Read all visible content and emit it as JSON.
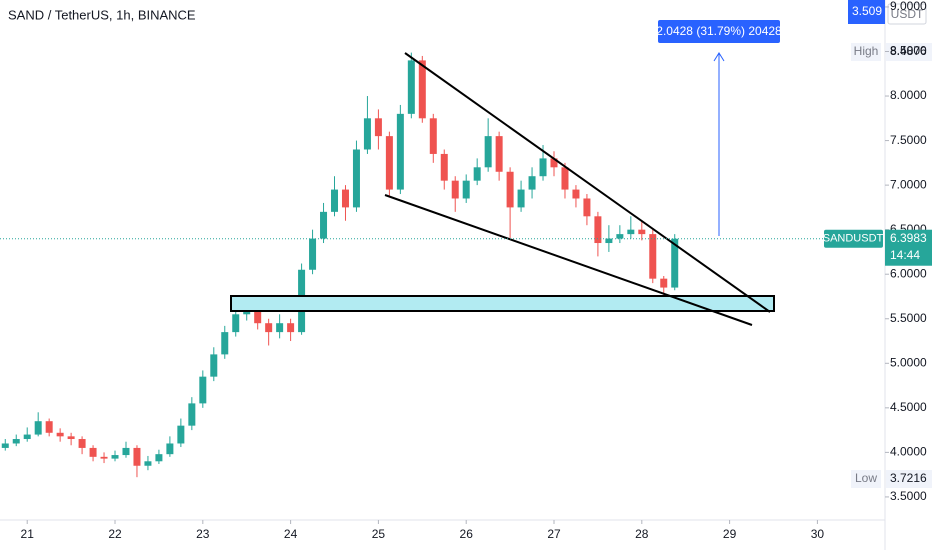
{
  "chart_data": {
    "type": "candlestick",
    "title": "SAND / TetherUS, 1h, BINANCE",
    "up_color": "#26a69a",
    "down_color": "#ef5350",
    "x": [
      20.75,
      20.875,
      21.0,
      21.125,
      21.25,
      21.375,
      21.5,
      21.625,
      21.75,
      21.875,
      22.0,
      22.125,
      22.25,
      22.375,
      22.5,
      22.625,
      22.75,
      22.875,
      23.0,
      23.125,
      23.25,
      23.375,
      23.5,
      23.625,
      23.75,
      23.875,
      24.0,
      24.125,
      24.25,
      24.375,
      24.5,
      24.625,
      24.75,
      24.875,
      25.0,
      25.125,
      25.25,
      25.375,
      25.5,
      25.625,
      25.75,
      25.875,
      26.0,
      26.125,
      26.25,
      26.375,
      26.5,
      26.625,
      26.75,
      26.875,
      27.0,
      27.125,
      27.25,
      27.375,
      27.5,
      27.625,
      27.75,
      27.875,
      28.0,
      28.125,
      28.25,
      28.375
    ],
    "open": [
      4.05,
      4.1,
      4.15,
      4.2,
      4.35,
      4.22,
      4.18,
      4.15,
      4.05,
      3.95,
      3.93,
      3.97,
      4.05,
      3.85,
      3.9,
      3.98,
      4.1,
      4.3,
      4.55,
      4.85,
      5.1,
      5.35,
      5.55,
      5.6,
      5.45,
      5.35,
      5.45,
      5.35,
      6.05,
      6.4,
      6.7,
      6.95,
      6.75,
      7.4,
      7.75,
      7.55,
      6.95,
      7.8,
      8.4,
      7.75,
      7.35,
      7.05,
      6.85,
      7.05,
      7.2,
      7.55,
      7.15,
      6.75,
      6.95,
      7.1,
      7.3,
      7.2,
      6.95,
      6.85,
      6.65,
      6.35,
      6.4,
      6.45,
      6.5,
      6.45,
      5.95,
      5.85
    ],
    "high": [
      4.15,
      4.2,
      4.28,
      4.45,
      4.38,
      4.27,
      4.22,
      4.18,
      4.08,
      4.0,
      4.02,
      4.12,
      4.08,
      3.96,
      4.03,
      4.18,
      4.38,
      4.62,
      4.92,
      5.18,
      5.42,
      5.62,
      5.7,
      5.65,
      5.5,
      5.55,
      5.5,
      6.12,
      6.5,
      6.8,
      7.1,
      7.0,
      7.5,
      8.0,
      7.85,
      7.6,
      7.9,
      8.4876,
      8.45,
      7.8,
      7.4,
      7.1,
      7.12,
      7.3,
      7.75,
      7.6,
      7.2,
      7.05,
      7.2,
      7.45,
      7.38,
      7.25,
      7.0,
      6.9,
      6.7,
      6.55,
      6.55,
      6.65,
      6.6,
      6.5,
      5.98,
      6.45
    ],
    "low": [
      4.02,
      4.07,
      4.12,
      4.18,
      4.18,
      4.12,
      4.08,
      3.98,
      3.9,
      3.88,
      3.9,
      3.94,
      3.7216,
      3.8,
      3.87,
      3.95,
      4.06,
      4.25,
      4.5,
      4.8,
      5.05,
      5.3,
      5.48,
      5.38,
      5.2,
      5.28,
      5.25,
      5.32,
      6.0,
      6.35,
      6.65,
      6.6,
      6.7,
      7.35,
      7.4,
      6.88,
      6.9,
      7.75,
      7.7,
      7.25,
      6.95,
      6.7,
      6.8,
      7.0,
      7.15,
      7.05,
      6.4,
      6.7,
      6.85,
      7.05,
      7.1,
      6.85,
      6.75,
      6.55,
      6.2,
      6.25,
      6.35,
      6.4,
      6.38,
      5.9,
      5.76,
      5.82
    ],
    "close": [
      4.1,
      4.15,
      4.2,
      4.35,
      4.22,
      4.18,
      4.15,
      4.05,
      3.95,
      3.93,
      3.97,
      4.05,
      3.85,
      3.9,
      3.98,
      4.1,
      4.3,
      4.55,
      4.85,
      5.1,
      5.35,
      5.55,
      5.6,
      5.45,
      5.35,
      5.45,
      5.35,
      6.05,
      6.4,
      6.7,
      6.95,
      6.75,
      7.4,
      7.75,
      7.55,
      6.95,
      7.8,
      8.4,
      7.75,
      7.35,
      7.05,
      6.85,
      7.05,
      7.2,
      7.55,
      7.15,
      6.75,
      6.95,
      7.1,
      7.3,
      7.2,
      6.95,
      6.85,
      6.65,
      6.35,
      6.4,
      6.45,
      6.5,
      6.45,
      5.95,
      5.85,
      6.3983
    ],
    "xlim": [
      20.69,
      30.77
    ],
    "xticks": [
      21,
      22,
      23,
      24,
      25,
      26,
      27,
      28,
      29,
      30
    ],
    "ylim": [
      3.241,
      9.078
    ],
    "yticks": [
      {
        "value": 3.5,
        "label": "3.5000"
      },
      {
        "value": 4,
        "label": "4.0000"
      },
      {
        "value": 4.5,
        "label": "4.5000"
      },
      {
        "value": 5,
        "label": "5.0000"
      },
      {
        "value": 5.5,
        "label": "5.5000"
      },
      {
        "value": 6,
        "label": "6.0000"
      },
      {
        "value": 6.5,
        "label": "6.5000"
      },
      {
        "value": 7,
        "label": "7.0000"
      },
      {
        "value": 7.5,
        "label": "7.5000"
      },
      {
        "value": 8,
        "label": "8.0000"
      },
      {
        "value": 8.5,
        "label": "8.5000"
      },
      {
        "value": 9,
        "label": "9.0000"
      }
    ],
    "currency": "USDT",
    "scale_badge": "3.509",
    "high_label": "High",
    "low_label": "Low",
    "symbol": "SANDUSDT",
    "countdown": "14:44",
    "measure_label": "2.0428 (31.79%) 20428"
  }
}
